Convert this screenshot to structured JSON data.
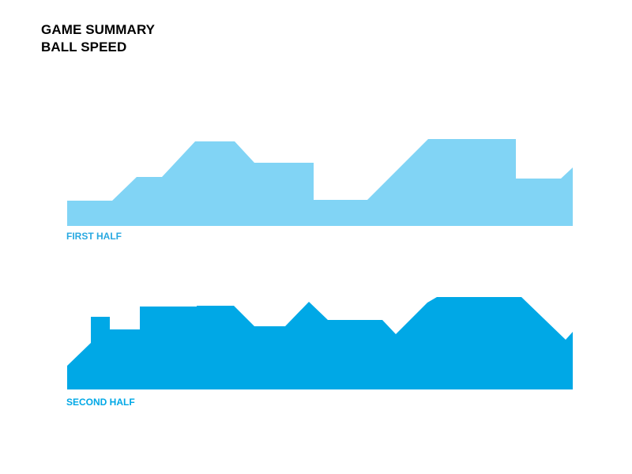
{
  "title": "GAME SUMMARY",
  "subtitle": "BALL SPEED",
  "chart_data": [
    {
      "type": "area",
      "series": [
        {
          "name": "FIRST HALF",
          "color": "#81d4f5",
          "points": [
            [
              0,
              32
            ],
            [
              57,
              32
            ],
            [
              88,
              62
            ],
            [
              120,
              62
            ],
            [
              162,
              107
            ],
            [
              212,
              107
            ],
            [
              237,
              80
            ],
            [
              312,
              80
            ],
            [
              312,
              33
            ],
            [
              380,
              33
            ],
            [
              457,
              110
            ],
            [
              568,
              110
            ],
            [
              568,
              60
            ],
            [
              625,
              60
            ],
            [
              640,
              74
            ]
          ]
        }
      ],
      "xlim": [
        0,
        640
      ],
      "ylim": [
        0,
        130
      ],
      "grid": false,
      "legend": "none"
    },
    {
      "type": "area",
      "series": [
        {
          "name": "SECOND HALF",
          "color": "#00a8e6",
          "points": [
            [
              0,
              30
            ],
            [
              30,
              59
            ],
            [
              30,
              92
            ],
            [
              54,
              92
            ],
            [
              54,
              76
            ],
            [
              92,
              76
            ],
            [
              92,
              105
            ],
            [
              164,
              105
            ],
            [
              164,
              106
            ],
            [
              211,
              106
            ],
            [
              237,
              80
            ],
            [
              276,
              80
            ],
            [
              306,
              111
            ],
            [
              330,
              88
            ],
            [
              399,
              88
            ],
            [
              416,
              70
            ],
            [
              456,
              110
            ],
            [
              468,
              117
            ],
            [
              575,
              117
            ],
            [
              631,
              63
            ],
            [
              640,
              73
            ]
          ]
        }
      ],
      "xlim": [
        0,
        640
      ],
      "ylim": [
        0,
        130
      ],
      "grid": false,
      "legend": "none"
    }
  ]
}
